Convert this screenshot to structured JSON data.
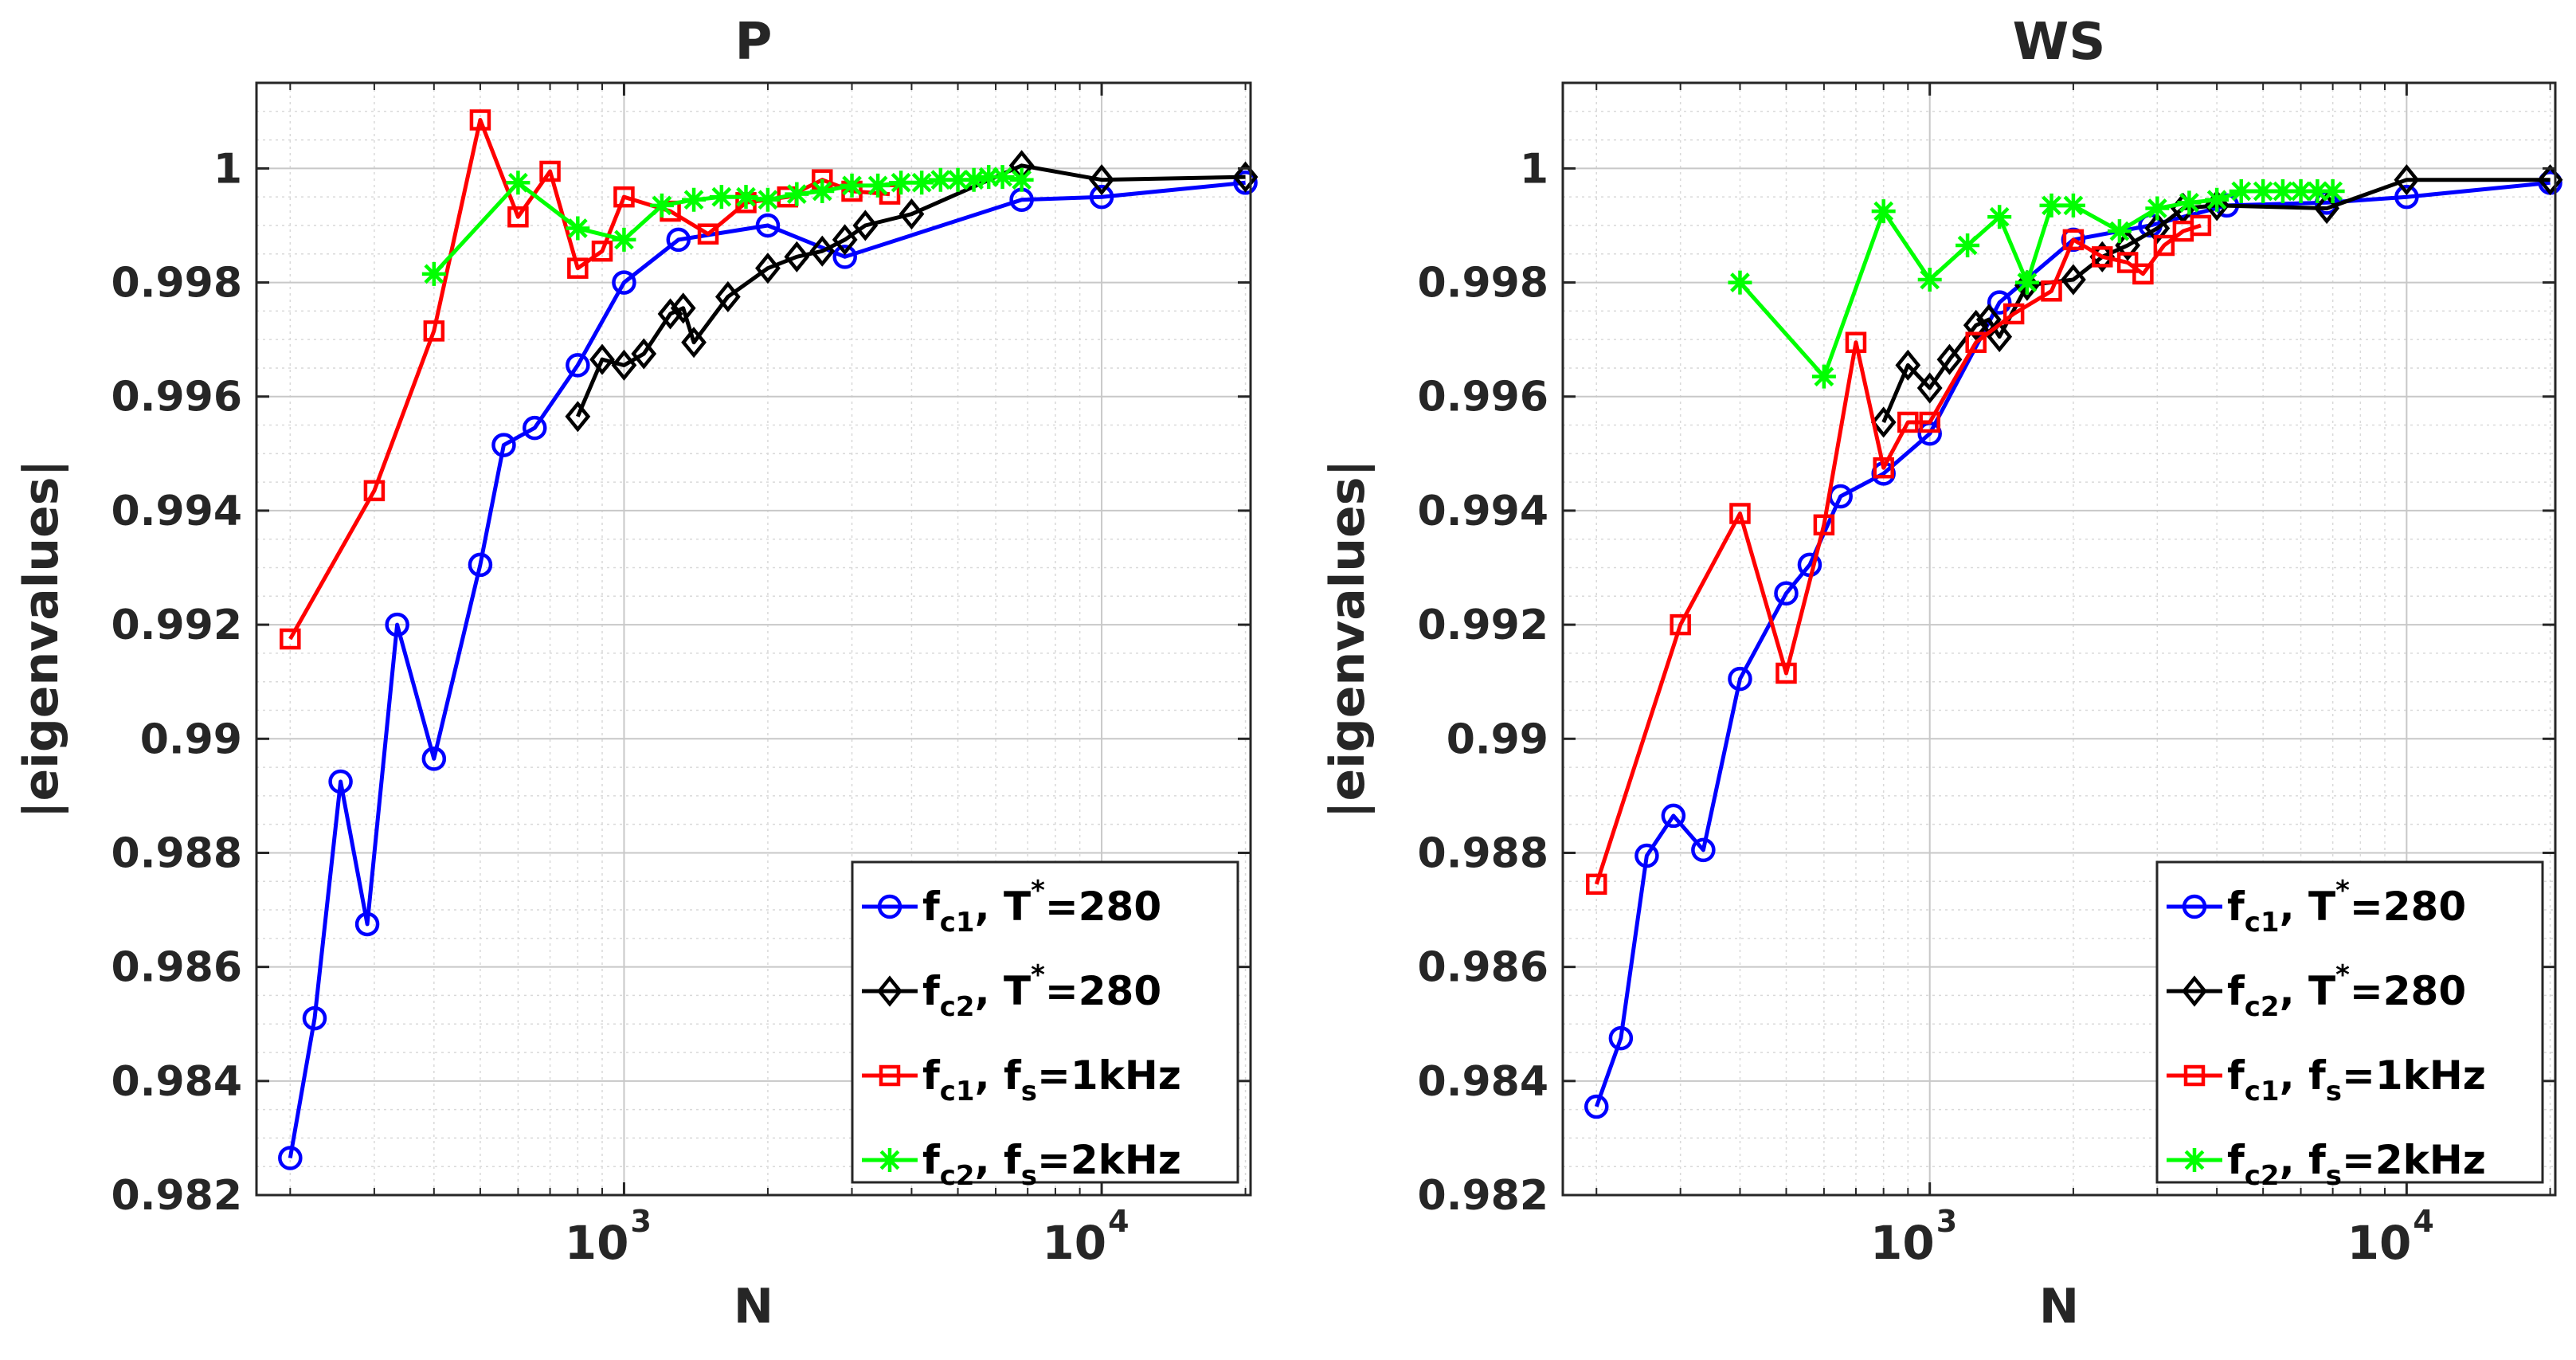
{
  "chart_data": [
    {
      "type": "line",
      "title": "P",
      "xlabel": "N",
      "ylabel": "|eigenvalues|",
      "xscale": "log",
      "xlim": [
        170,
        20500
      ],
      "ylim": [
        0.982,
        1.0015
      ],
      "yticks": [
        {
          "value": 0.982,
          "label": "0.982"
        },
        {
          "value": 0.984,
          "label": "0.984"
        },
        {
          "value": 0.986,
          "label": "0.986"
        },
        {
          "value": 0.988,
          "label": "0.988"
        },
        {
          "value": 0.99,
          "label": "0.99"
        },
        {
          "value": 0.992,
          "label": "0.992"
        },
        {
          "value": 0.994,
          "label": "0.994"
        },
        {
          "value": 0.996,
          "label": "0.996"
        },
        {
          "value": 0.998,
          "label": "0.998"
        },
        {
          "value": 1,
          "label": "1"
        }
      ],
      "xticks": [
        {
          "value": 1000,
          "base": "10",
          "exp": "3"
        },
        {
          "value": 10000,
          "base": "10",
          "exp": "4"
        }
      ],
      "grid": true,
      "legend_position": "bottom-right",
      "series": [
        {
          "name": "fc1, T*=280",
          "legend": {
            "main": "f",
            "sub": "c1",
            "rest": ", T",
            "sup": "*",
            "tail": "=280"
          },
          "color": "#0000ff",
          "marker": "circle",
          "x": [
            200,
            225,
            255,
            290,
            335,
            400,
            500,
            560,
            650,
            800,
            1000,
            1300,
            2000,
            2900,
            6800,
            10000,
            20000
          ],
          "y": [
            0.98265,
            0.9851,
            0.98925,
            0.98675,
            0.992,
            0.98965,
            0.99305,
            0.99515,
            0.99545,
            0.99655,
            0.998,
            0.99875,
            0.999,
            0.99845,
            0.99945,
            0.9995,
            0.99975
          ]
        },
        {
          "name": "fc2, T*=280",
          "legend": {
            "main": "f",
            "sub": "c2",
            "rest": ", T",
            "sup": "*",
            "tail": "=280"
          },
          "color": "#000000",
          "marker": "diamond",
          "x": [
            800,
            900,
            1000,
            1100,
            1250,
            1330,
            1400,
            1650,
            2000,
            2300,
            2600,
            2900,
            3200,
            4000,
            6800,
            10000,
            20000
          ],
          "y": [
            0.99565,
            0.99665,
            0.99655,
            0.99675,
            0.99745,
            0.99755,
            0.99695,
            0.99775,
            0.99825,
            0.99845,
            0.99855,
            0.99875,
            0.999,
            0.9992,
            1.00005,
            0.9998,
            0.99985
          ]
        },
        {
          "name": "fc1, fs=1kHz",
          "legend": {
            "main": "f",
            "sub": "c1",
            "rest": ", f",
            "sub2": "s",
            "tail": "=1kHz"
          },
          "color": "#ff0000",
          "marker": "square",
          "x": [
            200,
            300,
            400,
            500,
            600,
            700,
            800,
            900,
            1000,
            1250,
            1500,
            1800,
            2200,
            2600,
            3000,
            3600
          ],
          "y": [
            0.99175,
            0.99435,
            0.99715,
            1.00085,
            0.99915,
            0.99995,
            0.99825,
            0.99855,
            0.9995,
            0.99925,
            0.99885,
            0.9994,
            0.9995,
            0.9998,
            0.9996,
            0.99955
          ]
        },
        {
          "name": "fc2, fs=2kHz",
          "legend": {
            "main": "f",
            "sub": "c2",
            "rest": ", f",
            "sub2": "s",
            "tail": "=2kHz"
          },
          "color": "#00ff00",
          "marker": "asterisk",
          "x": [
            400,
            600,
            800,
            1000,
            1200,
            1400,
            1600,
            1800,
            2000,
            2300,
            2600,
            3000,
            3400,
            3800,
            4200,
            4600,
            5000,
            5400,
            5800,
            6200,
            6800
          ],
          "y": [
            0.99815,
            0.99975,
            0.99895,
            0.99875,
            0.99935,
            0.99945,
            0.9995,
            0.9995,
            0.99945,
            0.99955,
            0.9996,
            0.9997,
            0.9997,
            0.99975,
            0.99975,
            0.9998,
            0.9998,
            0.9998,
            0.99985,
            0.99985,
            0.9998
          ]
        }
      ]
    },
    {
      "type": "line",
      "title": "WS",
      "xlabel": "N",
      "ylabel": "|eigenvalues|",
      "xscale": "log",
      "xlim": [
        170,
        20500
      ],
      "ylim": [
        0.982,
        1.0015
      ],
      "yticks": [
        {
          "value": 0.982,
          "label": "0.982"
        },
        {
          "value": 0.984,
          "label": "0.984"
        },
        {
          "value": 0.986,
          "label": "0.986"
        },
        {
          "value": 0.988,
          "label": "0.988"
        },
        {
          "value": 0.99,
          "label": "0.99"
        },
        {
          "value": 0.992,
          "label": "0.992"
        },
        {
          "value": 0.994,
          "label": "0.994"
        },
        {
          "value": 0.996,
          "label": "0.996"
        },
        {
          "value": 0.998,
          "label": "0.998"
        },
        {
          "value": 1,
          "label": "1"
        }
      ],
      "xticks": [
        {
          "value": 1000,
          "base": "10",
          "exp": "3"
        },
        {
          "value": 10000,
          "base": "10",
          "exp": "4"
        }
      ],
      "grid": true,
      "legend_position": "bottom-right",
      "series": [
        {
          "name": "fc1, T*=280",
          "legend": {
            "main": "f",
            "sub": "c1",
            "rest": ", T",
            "sup": "*",
            "tail": "=280"
          },
          "color": "#0000ff",
          "marker": "circle",
          "x": [
            200,
            225,
            255,
            290,
            335,
            400,
            500,
            560,
            650,
            800,
            1000,
            1400,
            2000,
            2900,
            4200,
            6800,
            10000,
            20000
          ],
          "y": [
            0.98355,
            0.98475,
            0.98795,
            0.98865,
            0.98805,
            0.99105,
            0.99255,
            0.99305,
            0.99425,
            0.99465,
            0.99535,
            0.99765,
            0.99875,
            0.999,
            0.99935,
            0.9994,
            0.9995,
            0.99975
          ]
        },
        {
          "name": "fc2, T*=280",
          "legend": {
            "main": "f",
            "sub": "c2",
            "rest": ", T",
            "sup": "*",
            "tail": "=280"
          },
          "color": "#000000",
          "marker": "diamond",
          "x": [
            800,
            900,
            1000,
            1100,
            1250,
            1330,
            1400,
            1600,
            2000,
            2300,
            2600,
            3000,
            3400,
            4000,
            6800,
            10000,
            20000
          ],
          "y": [
            0.99555,
            0.99655,
            0.99615,
            0.99665,
            0.99725,
            0.99735,
            0.99705,
            0.99795,
            0.99805,
            0.99845,
            0.99865,
            0.99895,
            0.9993,
            0.99935,
            0.9993,
            0.9998,
            0.9998
          ]
        },
        {
          "name": "fc1, fs=1kHz",
          "legend": {
            "main": "f",
            "sub": "c1",
            "rest": ", f",
            "sub2": "s",
            "tail": "=1kHz"
          },
          "color": "#ff0000",
          "marker": "square",
          "x": [
            200,
            300,
            400,
            500,
            600,
            700,
            800,
            900,
            1000,
            1250,
            1500,
            1800,
            2000,
            2300,
            2600,
            2800,
            3100,
            3400,
            3700
          ],
          "y": [
            0.98745,
            0.992,
            0.99395,
            0.99115,
            0.99375,
            0.99695,
            0.99475,
            0.99555,
            0.99555,
            0.99695,
            0.99745,
            0.99785,
            0.99875,
            0.99845,
            0.99835,
            0.99815,
            0.99865,
            0.9989,
            0.999
          ]
        },
        {
          "name": "fc2, fs=2kHz",
          "legend": {
            "main": "f",
            "sub": "c2",
            "rest": ", f",
            "sub2": "s",
            "tail": "=2kHz"
          },
          "color": "#00ff00",
          "marker": "asterisk",
          "x": [
            400,
            600,
            800,
            1000,
            1200,
            1400,
            1600,
            1800,
            2000,
            2500,
            3000,
            3500,
            4000,
            4500,
            5000,
            5500,
            6000,
            6500,
            7000
          ],
          "y": [
            0.998,
            0.99635,
            0.99925,
            0.99805,
            0.99865,
            0.99915,
            0.998,
            0.99935,
            0.99935,
            0.9989,
            0.9993,
            0.9994,
            0.99945,
            0.9996,
            0.9996,
            0.9996,
            0.9996,
            0.9996,
            0.9996
          ]
        }
      ]
    }
  ]
}
